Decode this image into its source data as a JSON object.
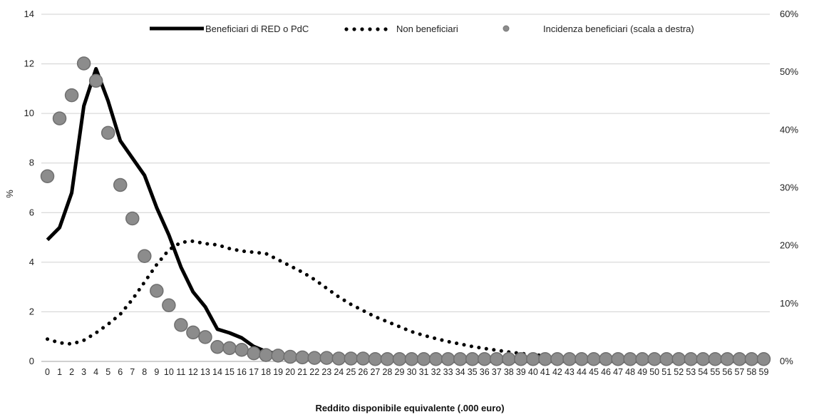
{
  "chart_data": {
    "type": "line",
    "xlabel": "Reddito disponibile equivalente (.000 euro)",
    "ylabel": "%",
    "ylim": [
      0,
      14
    ],
    "y2lim": [
      0,
      60
    ],
    "yticks": [
      "0",
      "2",
      "4",
      "6",
      "8",
      "10",
      "12",
      "14"
    ],
    "y2ticks": [
      "0%",
      "10%",
      "20%",
      "30%",
      "40%",
      "50%",
      "60%"
    ],
    "grid": true,
    "legend_position": "top",
    "categories": [
      "0",
      "1",
      "2",
      "3",
      "4",
      "5",
      "6",
      "7",
      "8",
      "9",
      "10",
      "11",
      "12",
      "13",
      "14",
      "15",
      "16",
      "17",
      "18",
      "19",
      "20",
      "21",
      "22",
      "23",
      "24",
      "25",
      "26",
      "27",
      "28",
      "29",
      "30",
      "31",
      "32",
      "33",
      "34",
      "35",
      "36",
      "37",
      "38",
      "39",
      "40",
      "41",
      "42",
      "43",
      "44",
      "45",
      "46",
      "47",
      "48",
      "49",
      "50",
      "51",
      "52",
      "53",
      "54",
      "55",
      "56",
      "57",
      "58",
      "59"
    ],
    "series": [
      {
        "name": "Beneficiari di RED o PdC",
        "axis": "left",
        "style": "solid",
        "color": "#000000",
        "values": [
          4.9,
          5.4,
          6.8,
          10.3,
          11.8,
          10.5,
          8.9,
          8.2,
          7.5,
          6.2,
          5.1,
          3.8,
          2.8,
          2.2,
          1.3,
          1.15,
          0.95,
          0.6,
          0.4,
          0.3,
          0.2,
          0.15,
          0.1,
          0.08,
          0.05,
          0.05,
          0.04,
          0.03,
          0.03,
          0.02,
          0.02,
          0.02,
          0.02,
          0.01,
          0.01,
          0.01,
          0.01,
          0.01,
          0.01,
          0.01,
          0.01,
          0.01,
          0.01,
          0.01,
          0.01,
          0.01,
          0.01,
          0.01,
          0.01,
          0.01,
          0.01,
          0.01,
          0.01,
          0.01,
          0.01,
          0.01,
          0.01,
          0.01,
          0.01,
          0.01
        ]
      },
      {
        "name": "Non beneficiari",
        "axis": "left",
        "style": "dotted",
        "color": "#000000",
        "values": [
          0.9,
          0.75,
          0.7,
          0.85,
          1.15,
          1.5,
          1.9,
          2.5,
          3.2,
          3.9,
          4.5,
          4.8,
          4.85,
          4.75,
          4.7,
          4.55,
          4.45,
          4.4,
          4.35,
          4.1,
          3.85,
          3.6,
          3.3,
          2.95,
          2.6,
          2.3,
          2.05,
          1.8,
          1.6,
          1.4,
          1.2,
          1.05,
          0.92,
          0.8,
          0.7,
          0.6,
          0.52,
          0.45,
          0.38,
          0.32,
          0.27,
          0.23,
          0.2,
          0.17,
          0.14,
          0.12,
          0.1,
          0.08,
          0.07,
          0.06,
          0.05,
          0.04,
          0.04,
          0.03,
          0.03,
          0.03,
          0.02,
          0.02,
          0.02,
          0.02
        ]
      },
      {
        "name": "Incidenza beneficiari (scala a destra)",
        "axis": "right",
        "style": "markers",
        "color": "#8c8c8c",
        "values": [
          32.0,
          42.0,
          46.0,
          51.5,
          48.5,
          39.5,
          30.5,
          24.7,
          18.2,
          12.2,
          9.7,
          6.3,
          5.0,
          4.2,
          2.5,
          2.3,
          2.0,
          1.4,
          1.1,
          1.0,
          0.8,
          0.7,
          0.6,
          0.6,
          0.5,
          0.5,
          0.5,
          0.4,
          0.4,
          0.4,
          0.4,
          0.4,
          0.4,
          0.4,
          0.4,
          0.4,
          0.4,
          0.4,
          0.4,
          0.4,
          0.4,
          0.4,
          0.4,
          0.4,
          0.4,
          0.4,
          0.4,
          0.4,
          0.4,
          0.4,
          0.4,
          0.4,
          0.4,
          0.4,
          0.4,
          0.4,
          0.4,
          0.4,
          0.4,
          0.4
        ]
      }
    ]
  }
}
